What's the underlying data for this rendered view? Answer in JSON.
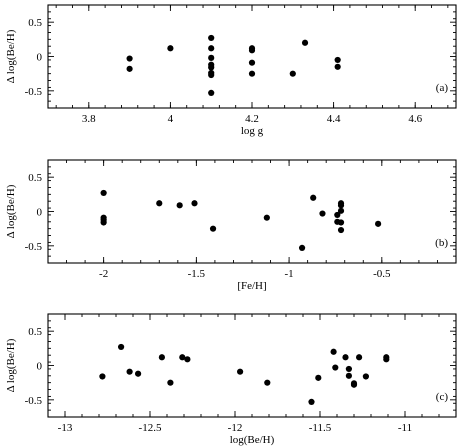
{
  "chart_data": [
    {
      "type": "scatter",
      "panel_label": "(a)",
      "xlabel": "log g",
      "ylabel": "Δ log(Be/H)",
      "xlim": [
        3.7,
        4.7
      ],
      "ylim": [
        -0.75,
        0.75
      ],
      "xticks": [
        3.8,
        4.0,
        4.2,
        4.4,
        4.6
      ],
      "xtick_labels": [
        "3.8",
        "4",
        "4.2",
        "4.4",
        "4.6"
      ],
      "yticks": [
        -0.5,
        0,
        0.5
      ],
      "ytick_labels": [
        "-0.5",
        "0",
        "0.5"
      ],
      "points": [
        {
          "x": 3.9,
          "y": -0.03
        },
        {
          "x": 3.9,
          "y": -0.18
        },
        {
          "x": 4.0,
          "y": 0.12
        },
        {
          "x": 4.1,
          "y": 0.27
        },
        {
          "x": 4.1,
          "y": 0.12
        },
        {
          "x": 4.1,
          "y": -0.02
        },
        {
          "x": 4.1,
          "y": -0.12
        },
        {
          "x": 4.1,
          "y": -0.16
        },
        {
          "x": 4.1,
          "y": -0.24
        },
        {
          "x": 4.1,
          "y": -0.27
        },
        {
          "x": 4.1,
          "y": -0.53
        },
        {
          "x": 4.2,
          "y": 0.12
        },
        {
          "x": 4.2,
          "y": 0.09
        },
        {
          "x": 4.2,
          "y": -0.09
        },
        {
          "x": 4.2,
          "y": -0.25
        },
        {
          "x": 4.3,
          "y": -0.25
        },
        {
          "x": 4.33,
          "y": 0.2
        },
        {
          "x": 4.41,
          "y": -0.05
        },
        {
          "x": 4.41,
          "y": -0.15
        }
      ]
    },
    {
      "type": "scatter",
      "panel_label": "(b)",
      "xlabel": "[Fe/H]",
      "ylabel": "Δ log(Be/H)",
      "xlim": [
        -2.3,
        -0.1
      ],
      "ylim": [
        -0.75,
        0.75
      ],
      "xticks": [
        -2,
        -1.5,
        -1,
        -0.5
      ],
      "xtick_labels": [
        "-2",
        "-1.5",
        "-1",
        "-0.5"
      ],
      "yticks": [
        -0.5,
        0,
        0.5
      ],
      "ytick_labels": [
        "-0.5",
        "0",
        "0.5"
      ],
      "points": [
        {
          "x": -2.0,
          "y": 0.27
        },
        {
          "x": -2.0,
          "y": -0.09
        },
        {
          "x": -2.0,
          "y": -0.12
        },
        {
          "x": -2.0,
          "y": -0.16
        },
        {
          "x": -1.7,
          "y": 0.12
        },
        {
          "x": -1.59,
          "y": 0.09
        },
        {
          "x": -1.51,
          "y": 0.12
        },
        {
          "x": -1.41,
          "y": -0.25
        },
        {
          "x": -1.12,
          "y": -0.09
        },
        {
          "x": -0.93,
          "y": -0.53
        },
        {
          "x": -0.87,
          "y": 0.2
        },
        {
          "x": -0.82,
          "y": -0.03
        },
        {
          "x": -0.74,
          "y": -0.05
        },
        {
          "x": -0.74,
          "y": -0.15
        },
        {
          "x": -0.72,
          "y": 0.12
        },
        {
          "x": -0.72,
          "y": 0.09
        },
        {
          "x": -0.72,
          "y": 0.01
        },
        {
          "x": -0.72,
          "y": -0.16
        },
        {
          "x": -0.72,
          "y": -0.27
        },
        {
          "x": -0.52,
          "y": -0.18
        }
      ]
    },
    {
      "type": "scatter",
      "panel_label": "(c)",
      "xlabel": "log(Be/H)",
      "ylabel": "Δ log(Be/H)",
      "xlim": [
        -13.1,
        -10.7
      ],
      "ylim": [
        -0.75,
        0.75
      ],
      "xticks": [
        -13,
        -12.5,
        -12,
        -11.5,
        -11
      ],
      "xtick_labels": [
        "-13",
        "-12.5",
        "-12",
        "-11.5",
        "-11"
      ],
      "yticks": [
        -0.5,
        0,
        0.5
      ],
      "ytick_labels": [
        "-0.5",
        "0",
        "0.5"
      ],
      "points": [
        {
          "x": -12.78,
          "y": -0.16
        },
        {
          "x": -12.67,
          "y": 0.27
        },
        {
          "x": -12.62,
          "y": -0.09
        },
        {
          "x": -12.57,
          "y": -0.12
        },
        {
          "x": -12.43,
          "y": 0.12
        },
        {
          "x": -12.38,
          "y": -0.25
        },
        {
          "x": -12.31,
          "y": 0.12
        },
        {
          "x": -12.28,
          "y": 0.09
        },
        {
          "x": -11.97,
          "y": -0.09
        },
        {
          "x": -11.81,
          "y": -0.25
        },
        {
          "x": -11.55,
          "y": -0.53
        },
        {
          "x": -11.51,
          "y": -0.18
        },
        {
          "x": -11.42,
          "y": 0.2
        },
        {
          "x": -11.41,
          "y": -0.03
        },
        {
          "x": -11.35,
          "y": 0.12
        },
        {
          "x": -11.33,
          "y": -0.05
        },
        {
          "x": -11.33,
          "y": -0.15
        },
        {
          "x": -11.3,
          "y": -0.26
        },
        {
          "x": -11.3,
          "y": -0.28
        },
        {
          "x": -11.27,
          "y": 0.12
        },
        {
          "x": -11.23,
          "y": -0.16
        },
        {
          "x": -11.11,
          "y": 0.12
        },
        {
          "x": -11.11,
          "y": 0.09
        }
      ]
    }
  ]
}
